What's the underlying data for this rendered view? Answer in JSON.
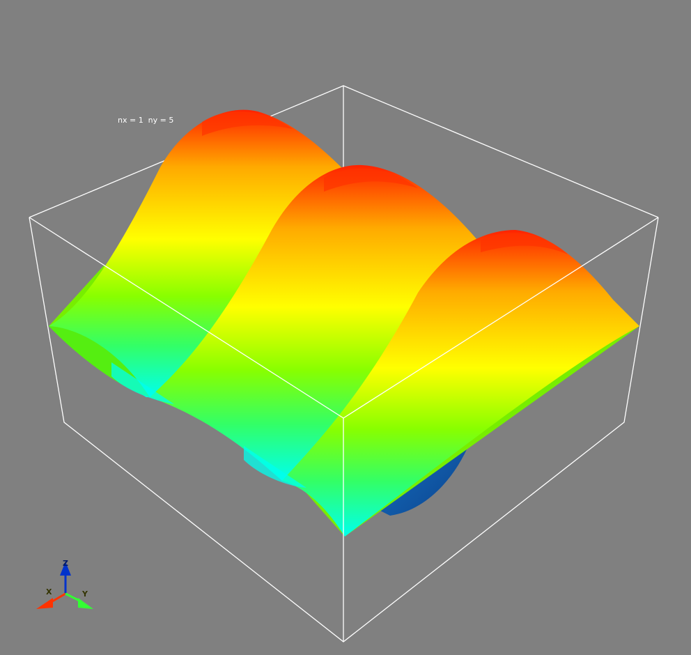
{
  "scene": {
    "background_color": "#808080",
    "bounding_box_color": "#ffffff",
    "colormap": [
      "#0033aa",
      "#00ffff",
      "#66ff00",
      "#ffff00",
      "#ff9900",
      "#ff0000"
    ],
    "surface_description_colors": {
      "peak": "#ff2200",
      "ridge_mid": "#ffcc00",
      "slope": "#ffff00",
      "valley": "#66ff00",
      "trough": "#00ffee",
      "underside": "#0a4fa8"
    }
  },
  "annotation": {
    "text": "nx = 1  ny = 5"
  },
  "orientation_axes": {
    "x_label": "X",
    "y_label": "Y",
    "z_label": "Z",
    "x_color": "#ff3300",
    "y_color": "#33ff33",
    "z_color": "#0033cc"
  }
}
